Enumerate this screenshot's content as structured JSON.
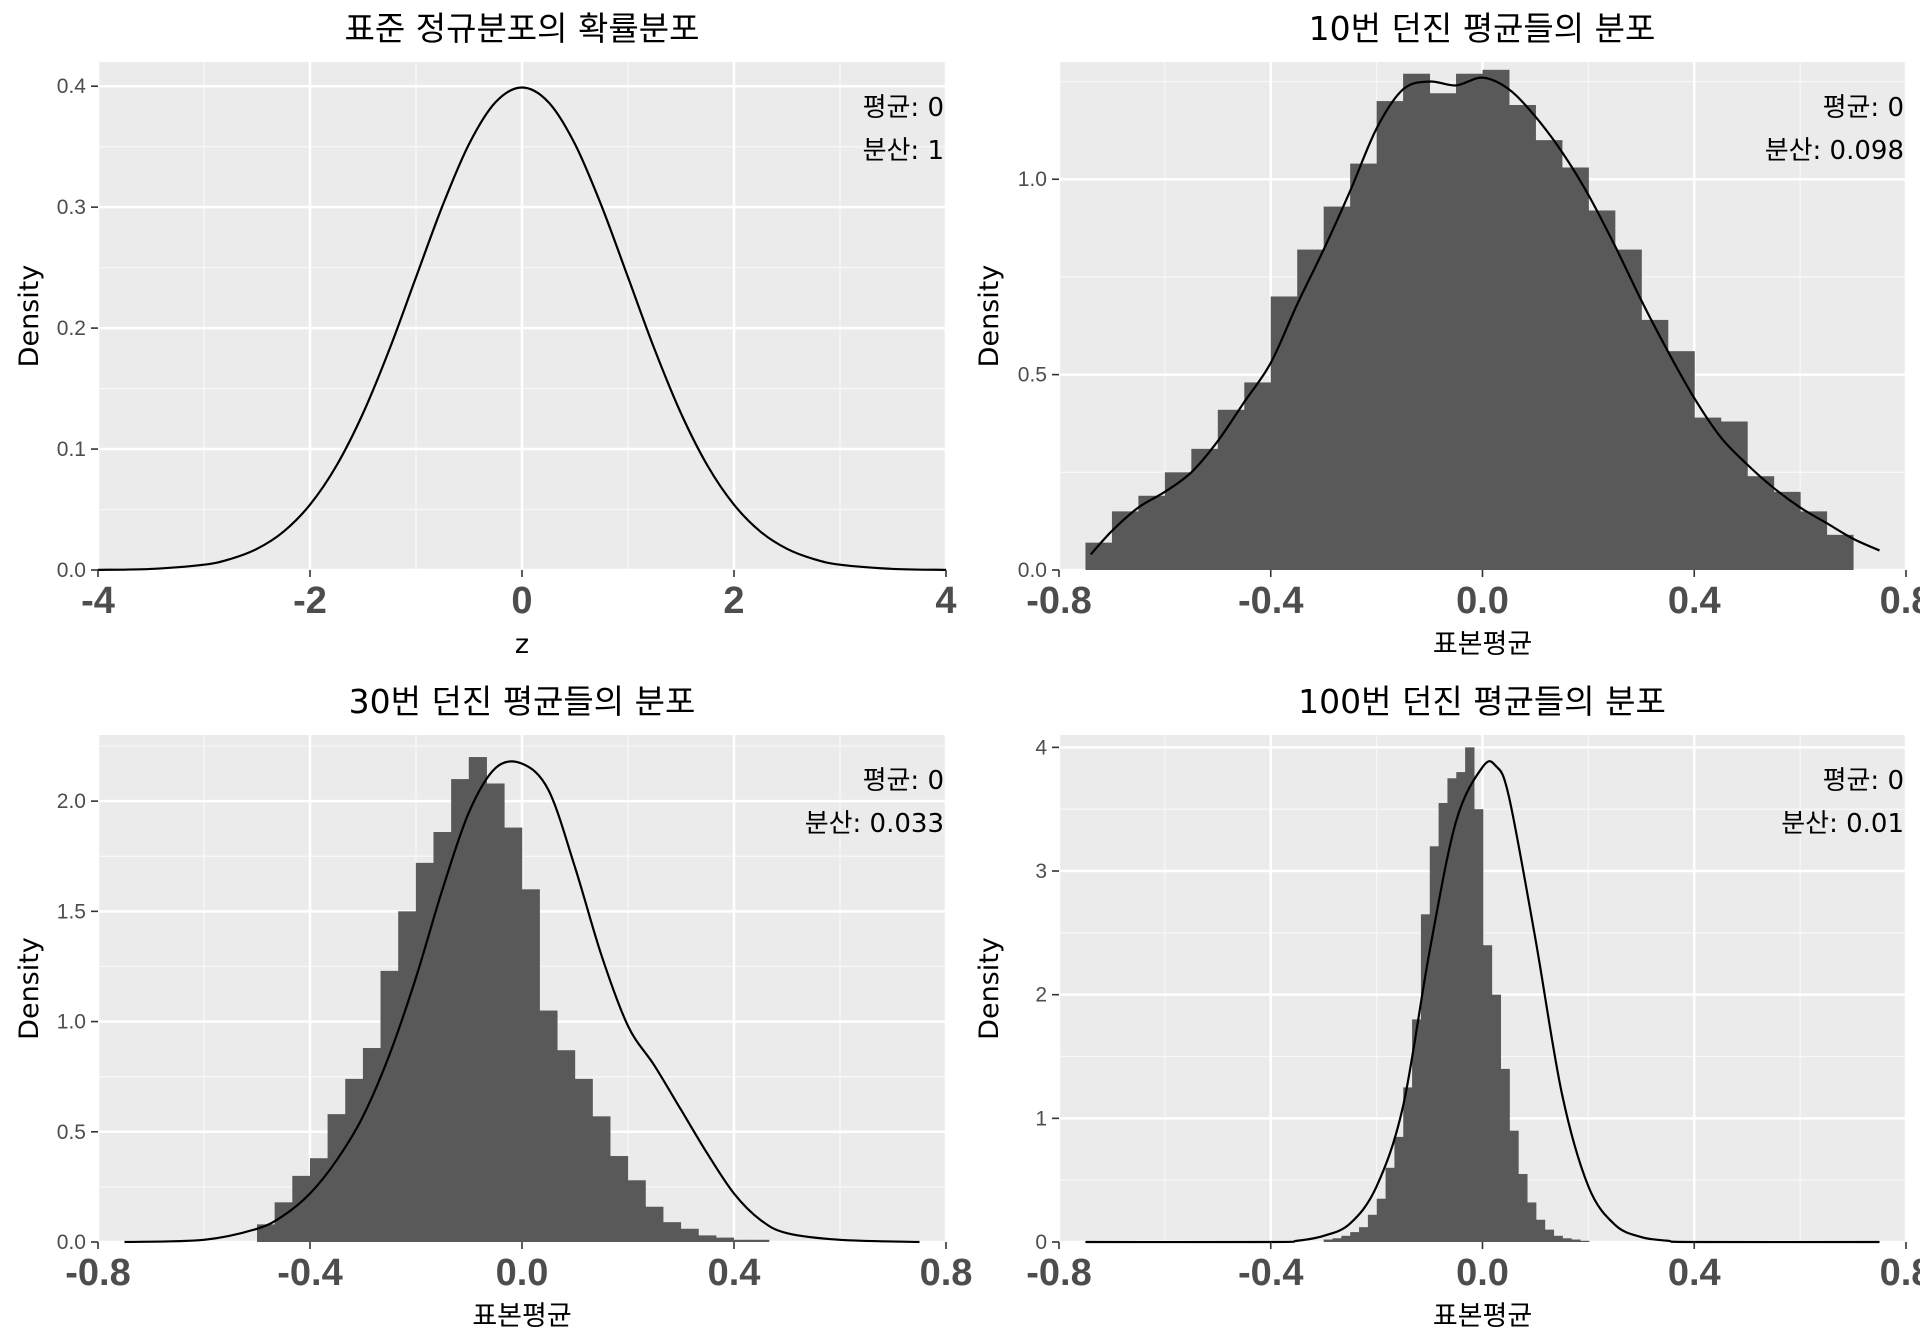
{
  "chart_data": [
    {
      "type": "line",
      "title": "표준 정규분포의 확률분포",
      "xlabel": "z",
      "ylabel": "Density",
      "xlim": [
        -4,
        4
      ],
      "ylim": [
        0,
        0.42
      ],
      "xticks": [
        -4,
        -2,
        0,
        2,
        4
      ],
      "xtick_labels": [
        "-4",
        "-2",
        "0",
        "2",
        "4"
      ],
      "yticks": [
        0,
        0.1,
        0.2,
        0.3,
        0.4
      ],
      "ytick_labels": [
        "0.0",
        "0.1",
        "0.2",
        "0.3",
        "0.4"
      ],
      "annotations": [
        "평균: 0",
        "분산: 1"
      ],
      "grid": true,
      "line": {
        "x": [
          -4,
          -3.5,
          -3,
          -2.75,
          -2.5,
          -2.25,
          -2,
          -1.75,
          -1.5,
          -1.25,
          -1,
          -0.75,
          -0.5,
          -0.25,
          0,
          0.25,
          0.5,
          0.75,
          1,
          1.25,
          1.5,
          1.75,
          2,
          2.25,
          2.5,
          2.75,
          3,
          3.5,
          4
        ],
        "y": [
          0.0001,
          0.0009,
          0.0044,
          0.0091,
          0.0175,
          0.0317,
          0.054,
          0.0863,
          0.1295,
          0.1826,
          0.242,
          0.3011,
          0.3521,
          0.3867,
          0.3989,
          0.3867,
          0.3521,
          0.3011,
          0.242,
          0.1826,
          0.1295,
          0.0863,
          0.054,
          0.0317,
          0.0175,
          0.0091,
          0.0044,
          0.0009,
          0.0001
        ]
      }
    },
    {
      "type": "bar",
      "title": "10번 던진 평균들의 분포",
      "xlabel": "표본평균",
      "ylabel": "Density",
      "xlim": [
        -0.8,
        0.8
      ],
      "ylim": [
        0,
        1.3
      ],
      "xticks": [
        -0.8,
        -0.4,
        0.0,
        0.4,
        0.8
      ],
      "xtick_labels": [
        "-0.8",
        "-0.4",
        "0.0",
        "0.4",
        "0.8"
      ],
      "yticks": [
        0,
        0.5,
        1.0
      ],
      "ytick_labels": [
        "0.0",
        "0.5",
        "1.0"
      ],
      "annotations": [
        "평균: 0",
        "분산: 0.098"
      ],
      "grid": true,
      "bins": {
        "start": -0.75,
        "width": 0.05,
        "values": [
          0.07,
          0.15,
          0.19,
          0.25,
          0.31,
          0.41,
          0.48,
          0.7,
          0.82,
          0.93,
          1.04,
          1.2,
          1.27,
          1.22,
          1.27,
          1.28,
          1.19,
          1.1,
          1.03,
          0.92,
          0.82,
          0.64,
          0.56,
          0.39,
          0.38,
          0.24,
          0.2,
          0.15,
          0.09
        ]
      },
      "density": {
        "x": [
          -0.74,
          -0.7,
          -0.65,
          -0.6,
          -0.55,
          -0.5,
          -0.45,
          -0.4,
          -0.35,
          -0.3,
          -0.25,
          -0.2,
          -0.15,
          -0.1,
          -0.05,
          0,
          0.05,
          0.1,
          0.15,
          0.2,
          0.25,
          0.3,
          0.35,
          0.4,
          0.45,
          0.5,
          0.55,
          0.6,
          0.65,
          0.7,
          0.75
        ],
        "y": [
          0.04,
          0.1,
          0.16,
          0.2,
          0.25,
          0.33,
          0.43,
          0.53,
          0.68,
          0.82,
          0.97,
          1.13,
          1.23,
          1.25,
          1.24,
          1.26,
          1.23,
          1.16,
          1.07,
          0.96,
          0.83,
          0.69,
          0.56,
          0.44,
          0.34,
          0.27,
          0.21,
          0.16,
          0.12,
          0.08,
          0.05
        ]
      }
    },
    {
      "type": "bar",
      "title": "30번 던진 평균들의 분포",
      "xlabel": "표본평균",
      "ylabel": "Density",
      "xlim": [
        -0.8,
        0.8
      ],
      "ylim": [
        0,
        2.3
      ],
      "xticks": [
        -0.8,
        -0.4,
        0.0,
        0.4,
        0.8
      ],
      "xtick_labels": [
        "-0.8",
        "-0.4",
        "0.0",
        "0.4",
        "0.8"
      ],
      "yticks": [
        0,
        0.5,
        1.0,
        1.5,
        2.0
      ],
      "ytick_labels": [
        "0.0",
        "0.5",
        "1.0",
        "1.5",
        "2.0"
      ],
      "annotations": [
        "평균: 0",
        "분산: 0.033"
      ],
      "grid": true,
      "bins": {
        "start": -0.5,
        "width": 0.0333,
        "values": [
          0.08,
          0.18,
          0.3,
          0.38,
          0.58,
          0.74,
          0.88,
          1.23,
          1.5,
          1.72,
          1.86,
          2.1,
          2.2,
          2.08,
          1.88,
          1.6,
          1.05,
          0.87,
          0.74,
          0.57,
          0.39,
          0.28,
          0.16,
          0.09,
          0.06,
          0.03,
          0.02,
          0.01,
          0.01,
          0.0
        ]
      },
      "density": {
        "x": [
          -0.75,
          -0.6,
          -0.5,
          -0.45,
          -0.4,
          -0.35,
          -0.3,
          -0.25,
          -0.2,
          -0.15,
          -0.1,
          -0.05,
          0,
          0.05,
          0.1,
          0.15,
          0.2,
          0.25,
          0.3,
          0.35,
          0.4,
          0.45,
          0.5,
          0.6,
          0.75
        ],
        "y": [
          0.0,
          0.01,
          0.06,
          0.12,
          0.22,
          0.37,
          0.57,
          0.85,
          1.2,
          1.6,
          1.95,
          2.15,
          2.17,
          2.05,
          1.7,
          1.3,
          0.98,
          0.8,
          0.6,
          0.4,
          0.22,
          0.1,
          0.04,
          0.01,
          0.0
        ]
      }
    },
    {
      "type": "bar",
      "title": "100번 던진 평균들의 분포",
      "xlabel": "표본평균",
      "ylabel": "Density",
      "xlim": [
        -0.8,
        0.8
      ],
      "ylim": [
        0,
        4.1
      ],
      "xticks": [
        -0.8,
        -0.4,
        0.0,
        0.4,
        0.8
      ],
      "xtick_labels": [
        "-0.8",
        "-0.4",
        "0.0",
        "0.4",
        "0.8"
      ],
      "yticks": [
        0,
        1,
        2,
        3,
        4
      ],
      "ytick_labels": [
        "0",
        "1",
        "2",
        "3",
        "4"
      ],
      "annotations": [
        "평균: 0",
        "분산: 0.01"
      ],
      "grid": true,
      "bins": {
        "start": -0.3,
        "width": 0.0167,
        "values": [
          0.02,
          0.03,
          0.05,
          0.08,
          0.12,
          0.22,
          0.35,
          0.6,
          0.85,
          1.25,
          1.8,
          2.65,
          3.2,
          3.55,
          3.75,
          3.8,
          4.0,
          3.5,
          2.4,
          2.0,
          1.4,
          0.9,
          0.55,
          0.32,
          0.18,
          0.1,
          0.05,
          0.03,
          0.02,
          0.01
        ]
      },
      "density": {
        "x": [
          -0.75,
          -0.4,
          -0.35,
          -0.3,
          -0.25,
          -0.2,
          -0.15,
          -0.1,
          -0.05,
          0,
          0.025,
          0.05,
          0.1,
          0.15,
          0.2,
          0.25,
          0.3,
          0.35,
          0.4,
          0.75
        ],
        "y": [
          0.0,
          0.0,
          0.01,
          0.05,
          0.15,
          0.45,
          1.1,
          2.35,
          3.4,
          3.84,
          3.85,
          3.6,
          2.45,
          1.2,
          0.45,
          0.14,
          0.04,
          0.01,
          0.0,
          0.0
        ]
      }
    }
  ]
}
